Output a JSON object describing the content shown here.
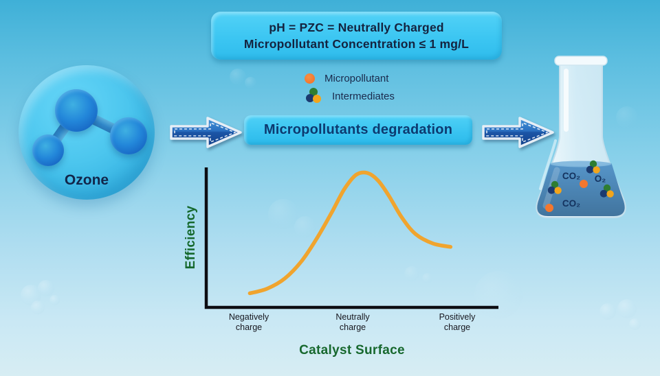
{
  "banner": {
    "line1": "pH = PZC = Neutrally Charged",
    "line2": "Micropollutant Concentration ≤ 1 mg/L"
  },
  "ozone": {
    "label": "Ozone"
  },
  "legend": {
    "micropollutant": {
      "label": "Micropollutant",
      "color": "#f4772e"
    },
    "intermediates": {
      "label": "Intermediates",
      "colors": [
        "#2e7d32",
        "#1b3a70",
        "#f2a51c"
      ]
    }
  },
  "process_box": {
    "label": "Micropollutants degradation"
  },
  "flask": {
    "molecule_labels": [
      {
        "text": "CO₂"
      },
      {
        "text": "O₂"
      },
      {
        "text": "CO₂"
      }
    ]
  },
  "chart_data": {
    "type": "line",
    "title": "",
    "xlabel": "Catalyst Surface",
    "ylabel": "Efficiency",
    "categories": [
      "Negatively charge",
      "Neutrally charge",
      "Positively charge"
    ],
    "series": [
      {
        "name": "",
        "values": [
          0.11,
          1.0,
          0.45
        ]
      }
    ],
    "ylim": [
      0,
      1
    ],
    "grid": false,
    "legend_position": "none",
    "curve_color": "#f0a42e",
    "curve_points": [
      [
        0.15,
        0.105
      ],
      [
        0.21,
        0.14
      ],
      [
        0.27,
        0.215
      ],
      [
        0.33,
        0.35
      ],
      [
        0.385,
        0.53
      ],
      [
        0.435,
        0.72
      ],
      [
        0.475,
        0.88
      ],
      [
        0.515,
        0.985
      ],
      [
        0.553,
        1.0
      ],
      [
        0.59,
        0.945
      ],
      [
        0.628,
        0.83
      ],
      [
        0.672,
        0.67
      ],
      [
        0.72,
        0.545
      ],
      [
        0.78,
        0.475
      ],
      [
        0.84,
        0.45
      ]
    ]
  },
  "colors": {
    "background_top": "#3fb0d7",
    "background_bottom": "#d7edf3",
    "banner_bg": "#3cc6f2",
    "navy_text": "#14233f",
    "process_text": "#0d3a70",
    "green_label": "#15682c",
    "curve": "#f0a42e",
    "micropollutant_orange": "#f4772e",
    "intermediate_green": "#2e7d32",
    "intermediate_navy": "#1b3a70",
    "intermediate_yellow": "#f2a51c",
    "arrow_blue": "#1c55a6",
    "flask_liquid": "#4e8ec4",
    "axis_black": "#0d0d12"
  }
}
